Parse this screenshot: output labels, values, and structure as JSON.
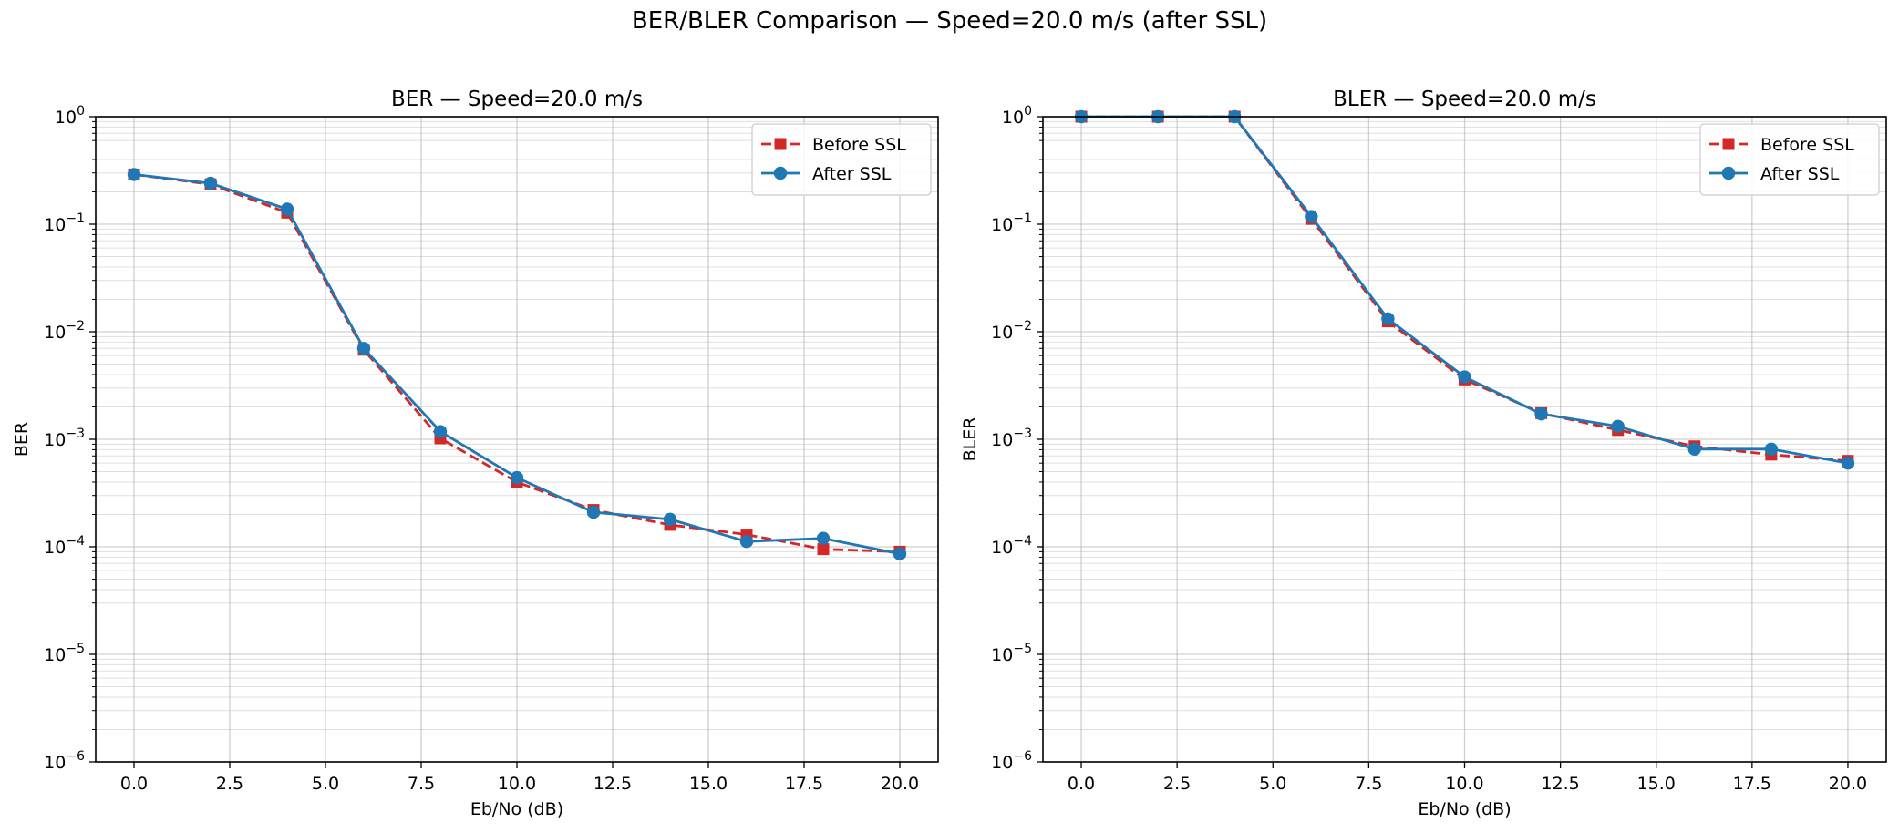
{
  "figure": {
    "suptitle": "BER/BLER Comparison — Speed=20.0 m/s (after SSL)",
    "colors": {
      "before": "#d62728",
      "after": "#1f77b4",
      "grid": "#b0b0b0"
    }
  },
  "chart_data": [
    {
      "type": "line",
      "title": "BER — Speed=20.0 m/s",
      "xlabel": "Eb/No (dB)",
      "ylabel": "BER",
      "yscale": "log",
      "xlim": [
        -1.0,
        21.0
      ],
      "ylim": [
        1e-06,
        1
      ],
      "xticks": [
        0,
        2.5,
        5,
        7.5,
        10,
        12.5,
        15,
        17.5,
        20
      ],
      "xtick_labels": [
        "0.0",
        "2.5",
        "5.0",
        "7.5",
        "10.0",
        "12.5",
        "15.0",
        "17.5",
        "20.0"
      ],
      "yticks": [
        1e-06,
        1e-05,
        0.0001,
        0.001,
        0.01,
        0.1,
        1
      ],
      "ytick_labels": [
        {
          "base": "10",
          "exp": "−6"
        },
        {
          "base": "10",
          "exp": "−5"
        },
        {
          "base": "10",
          "exp": "−4"
        },
        {
          "base": "10",
          "exp": "−3"
        },
        {
          "base": "10",
          "exp": "−2"
        },
        {
          "base": "10",
          "exp": "−1"
        },
        {
          "base": "10",
          "exp": "0"
        }
      ],
      "grid": true,
      "legend_position": "top-right",
      "x": [
        0,
        2,
        4,
        6,
        8,
        10,
        12,
        14,
        16,
        18,
        20
      ],
      "series": [
        {
          "name": "Before SSL",
          "style": "dashed",
          "marker": "square",
          "color": "#d62728",
          "values": [
            0.29,
            0.235,
            0.128,
            0.0068,
            0.00102,
            0.0004,
            0.00022,
            0.00016,
            0.00013,
            9.5e-05,
            9e-05
          ]
        },
        {
          "name": "After SSL",
          "style": "solid",
          "marker": "circle",
          "color": "#1f77b4",
          "values": [
            0.29,
            0.24,
            0.138,
            0.007,
            0.00118,
            0.00044,
            0.00021,
            0.00018,
            0.000112,
            0.00012,
            8.6e-05
          ]
        }
      ]
    },
    {
      "type": "line",
      "title": "BLER — Speed=20.0 m/s",
      "xlabel": "Eb/No (dB)",
      "ylabel": "BLER",
      "yscale": "log",
      "xlim": [
        -1.0,
        21.0
      ],
      "ylim": [
        1e-06,
        1
      ],
      "xticks": [
        0,
        2.5,
        5,
        7.5,
        10,
        12.5,
        15,
        17.5,
        20
      ],
      "xtick_labels": [
        "0.0",
        "2.5",
        "5.0",
        "7.5",
        "10.0",
        "12.5",
        "15.0",
        "17.5",
        "20.0"
      ],
      "yticks": [
        1e-06,
        1e-05,
        0.0001,
        0.001,
        0.01,
        0.1,
        1
      ],
      "ytick_labels": [
        {
          "base": "10",
          "exp": "−6"
        },
        {
          "base": "10",
          "exp": "−5"
        },
        {
          "base": "10",
          "exp": "−4"
        },
        {
          "base": "10",
          "exp": "−3"
        },
        {
          "base": "10",
          "exp": "−2"
        },
        {
          "base": "10",
          "exp": "−1"
        },
        {
          "base": "10",
          "exp": "0"
        }
      ],
      "grid": true,
      "legend_position": "top-right",
      "x": [
        0,
        2,
        4,
        6,
        8,
        10,
        12,
        14,
        16,
        18,
        20
      ],
      "series": [
        {
          "name": "Before SSL",
          "style": "dashed",
          "marker": "square",
          "color": "#d62728",
          "values": [
            1.0,
            1.0,
            1.0,
            0.112,
            0.0125,
            0.0036,
            0.00175,
            0.00122,
            0.00086,
            0.00072,
            0.00063
          ]
        },
        {
          "name": "After SSL",
          "style": "solid",
          "marker": "circle",
          "color": "#1f77b4",
          "values": [
            1.0,
            1.0,
            1.0,
            0.118,
            0.0132,
            0.0038,
            0.00172,
            0.00132,
            0.00081,
            0.00081,
            0.0006
          ]
        }
      ]
    }
  ]
}
